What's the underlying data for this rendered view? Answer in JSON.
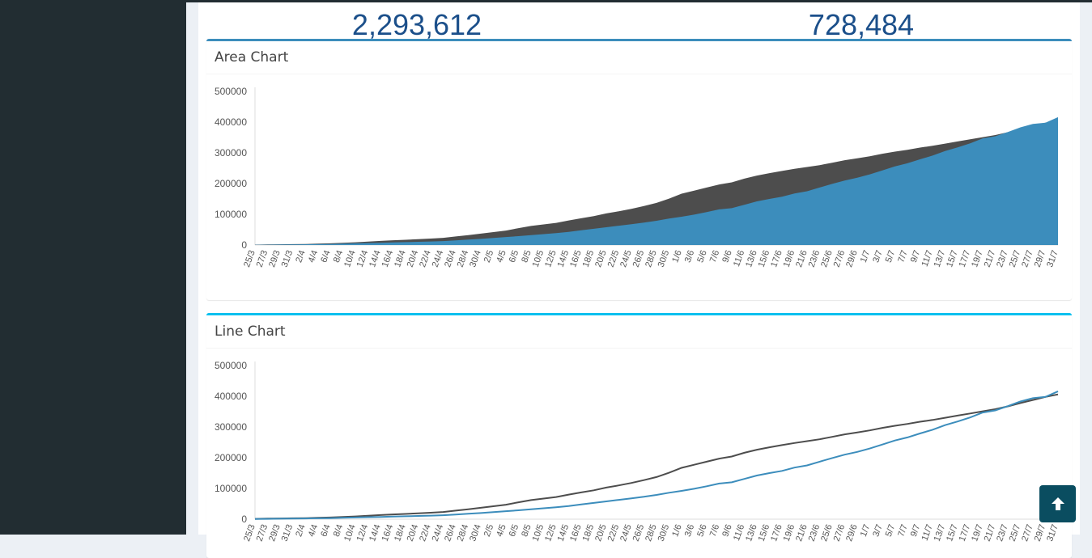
{
  "stats": [
    "2,293,612",
    "728,484"
  ],
  "colors": {
    "series_dark": "#4d4d4d",
    "series_blue": "#3c8dbc",
    "sidebar": "#222d32",
    "stat_text": "#1b4f8a",
    "box_primary": "#3c8dbc",
    "box_info": "#00c0ef",
    "scroll_button": "#0a4d60"
  },
  "icons": {
    "scroll_top": "arrow-up-icon"
  },
  "chart_data": [
    {
      "type": "area",
      "title": "Area Chart",
      "ylim": [
        0,
        500000
      ],
      "y_ticks": [
        0,
        100000,
        200000,
        300000,
        400000,
        500000
      ],
      "x_labels": [
        "25/3",
        "27/3",
        "29/3",
        "31/3",
        "2/4",
        "4/4",
        "6/4",
        "8/4",
        "10/4",
        "12/4",
        "14/4",
        "16/4",
        "18/4",
        "20/4",
        "22/4",
        "24/4",
        "26/4",
        "28/4",
        "30/4",
        "2/5",
        "4/5",
        "6/5",
        "8/5",
        "10/5",
        "12/5",
        "14/5",
        "16/5",
        "18/5",
        "20/5",
        "22/5",
        "24/5",
        "26/5",
        "28/5",
        "30/5",
        "1/6",
        "3/6",
        "5/6",
        "7/6",
        "9/6",
        "11/6",
        "13/6",
        "15/6",
        "17/6",
        "19/6",
        "21/6",
        "23/6",
        "25/6",
        "27/6",
        "29/6",
        "1/7",
        "3/7",
        "5/7",
        "7/7",
        "9/7",
        "11/7",
        "13/7",
        "15/7",
        "17/7",
        "19/7",
        "21/7",
        "23/7",
        "25/7",
        "27/7",
        "29/7",
        "31/7"
      ],
      "grid": false,
      "series": [
        {
          "color": "#4d4d4d",
          "values": [
            1000,
            2000,
            2500,
            3000,
            3500,
            4500,
            5500,
            7000,
            9000,
            11000,
            13500,
            15500,
            17000,
            19000,
            21000,
            23500,
            28000,
            32000,
            37000,
            42000,
            47000,
            55000,
            62000,
            67000,
            72000,
            80000,
            87000,
            94000,
            103000,
            110000,
            118000,
            127000,
            137000,
            151000,
            167000,
            177000,
            187000,
            197000,
            204000,
            216000,
            226000,
            234000,
            241000,
            248000,
            254000,
            260000,
            268000,
            276000,
            282000,
            289000,
            297000,
            304000,
            310000,
            317000,
            323000,
            330000,
            337000,
            344000,
            351000,
            358000,
            367000,
            378000,
            388000,
            398000,
            406000
          ]
        },
        {
          "color": "#3c8dbc",
          "values": [
            500,
            1000,
            1500,
            2000,
            2500,
            3000,
            3500,
            4500,
            5500,
            6500,
            7500,
            8500,
            9500,
            10500,
            11500,
            13000,
            15000,
            17500,
            20000,
            23000,
            26000,
            29000,
            32000,
            35500,
            39000,
            43000,
            48000,
            53000,
            58000,
            63000,
            68000,
            73000,
            79000,
            86000,
            92000,
            99000,
            107000,
            116000,
            120000,
            131000,
            142000,
            150000,
            157000,
            168000,
            175000,
            187000,
            199000,
            210000,
            219000,
            230000,
            243000,
            256000,
            266000,
            279000,
            291000,
            306000,
            318000,
            331000,
            347000,
            354000,
            368000,
            383000,
            394000,
            398000,
            416000
          ]
        }
      ]
    },
    {
      "type": "line",
      "title": "Line Chart",
      "ylim": [
        0,
        500000
      ],
      "y_ticks": [
        0,
        100000,
        200000,
        300000,
        400000,
        500000
      ],
      "x_labels": [
        "25/3",
        "27/3",
        "29/3",
        "31/3",
        "2/4",
        "4/4",
        "6/4",
        "8/4",
        "10/4",
        "12/4",
        "14/4",
        "16/4",
        "18/4",
        "20/4",
        "22/4",
        "24/4",
        "26/4",
        "28/4",
        "30/4",
        "2/5",
        "4/5",
        "6/5",
        "8/5",
        "10/5",
        "12/5",
        "14/5",
        "16/5",
        "18/5",
        "20/5",
        "22/5",
        "24/5",
        "26/5",
        "28/5",
        "30/5",
        "1/6",
        "3/6",
        "5/6",
        "7/6",
        "9/6",
        "11/6",
        "13/6",
        "15/6",
        "17/6",
        "19/6",
        "21/6",
        "23/6",
        "25/6",
        "27/6",
        "29/6",
        "1/7",
        "3/7",
        "5/7",
        "7/7",
        "9/7",
        "11/7",
        "13/7",
        "15/7",
        "17/7",
        "19/7",
        "21/7",
        "23/7",
        "25/7",
        "27/7",
        "29/7",
        "31/7"
      ],
      "grid": false,
      "series": [
        {
          "color": "#4d4d4d",
          "values": [
            1000,
            2000,
            2500,
            3000,
            3500,
            4500,
            5500,
            7000,
            9000,
            11000,
            13500,
            15500,
            17000,
            19000,
            21000,
            23500,
            28000,
            32000,
            37000,
            42000,
            47000,
            55000,
            62000,
            67000,
            72000,
            80000,
            87000,
            94000,
            103000,
            110000,
            118000,
            127000,
            137000,
            151000,
            167000,
            177000,
            187000,
            197000,
            204000,
            216000,
            226000,
            234000,
            241000,
            248000,
            254000,
            260000,
            268000,
            276000,
            282000,
            289000,
            297000,
            304000,
            310000,
            317000,
            323000,
            330000,
            337000,
            344000,
            351000,
            358000,
            367000,
            378000,
            388000,
            398000,
            406000
          ]
        },
        {
          "color": "#3c8dbc",
          "values": [
            500,
            1000,
            1500,
            2000,
            2500,
            3000,
            3500,
            4500,
            5500,
            6500,
            7500,
            8500,
            9500,
            10500,
            11500,
            13000,
            15000,
            17500,
            20000,
            23000,
            26000,
            29000,
            32000,
            35500,
            39000,
            43000,
            48000,
            53000,
            58000,
            63000,
            68000,
            73000,
            79000,
            86000,
            92000,
            99000,
            107000,
            116000,
            120000,
            131000,
            142000,
            150000,
            157000,
            168000,
            175000,
            187000,
            199000,
            210000,
            219000,
            230000,
            243000,
            256000,
            266000,
            279000,
            291000,
            306000,
            318000,
            331000,
            347000,
            354000,
            368000,
            383000,
            394000,
            398000,
            416000
          ]
        }
      ]
    }
  ]
}
